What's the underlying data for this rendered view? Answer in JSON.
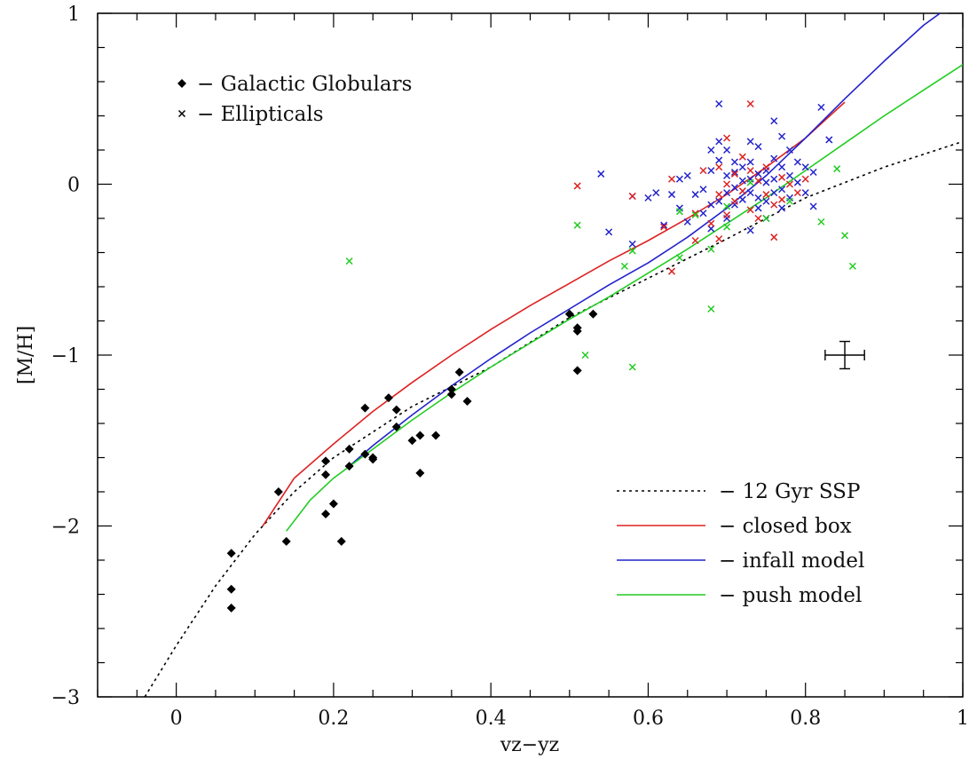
{
  "chart_data": {
    "type": "scatter",
    "xlabel": "vz−yz",
    "ylabel": "[M/H]",
    "xlim": [
      -0.1,
      1.0
    ],
    "ylim": [
      -3.0,
      1.0
    ],
    "x_ticks": [
      {
        "value": 0.0,
        "label": "0"
      },
      {
        "value": 0.2,
        "label": "0.2"
      },
      {
        "value": 0.4,
        "label": "0.4"
      },
      {
        "value": 0.6,
        "label": "0.6"
      },
      {
        "value": 0.8,
        "label": "0.8"
      },
      {
        "value": 1.0,
        "label": "1"
      }
    ],
    "y_ticks": [
      {
        "value": 1,
        "label": "1"
      },
      {
        "value": 0,
        "label": "0"
      },
      {
        "value": -1,
        "label": "−1"
      },
      {
        "value": -2,
        "label": "−2"
      },
      {
        "value": -3,
        "label": "−3"
      }
    ],
    "grid": false,
    "marker_legend": {
      "placement": "top-left",
      "entries": [
        {
          "marker": "diamond",
          "label": "− Galactic Globulars"
        },
        {
          "marker": "cross",
          "label": "− Ellipticals"
        }
      ]
    },
    "line_legend": {
      "placement": "bottom-right",
      "entries": [
        {
          "series": "ssp",
          "label": "− 12 Gyr SSP"
        },
        {
          "series": "closed",
          "label": "− closed box"
        },
        {
          "series": "infall",
          "label": "− infall model"
        },
        {
          "series": "push",
          "label": "− push model"
        }
      ]
    },
    "lines": [
      {
        "id": "ssp",
        "color": "#000000",
        "style": "dotted",
        "points": [
          [
            -0.04,
            -3.0
          ],
          [
            0.0,
            -2.7
          ],
          [
            0.05,
            -2.35
          ],
          [
            0.1,
            -2.05
          ],
          [
            0.15,
            -1.8
          ],
          [
            0.2,
            -1.6
          ],
          [
            0.3,
            -1.3
          ],
          [
            0.4,
            -1.07
          ],
          [
            0.5,
            -0.78
          ],
          [
            0.6,
            -0.55
          ],
          [
            0.7,
            -0.32
          ],
          [
            0.8,
            -0.08
          ],
          [
            0.9,
            0.1
          ],
          [
            1.0,
            0.25
          ]
        ]
      },
      {
        "id": "closed",
        "color": "#dd2222",
        "style": "solid",
        "points": [
          [
            0.11,
            -2.0
          ],
          [
            0.15,
            -1.72
          ],
          [
            0.2,
            -1.52
          ],
          [
            0.25,
            -1.33
          ],
          [
            0.3,
            -1.16
          ],
          [
            0.35,
            -1.0
          ],
          [
            0.4,
            -0.85
          ],
          [
            0.45,
            -0.71
          ],
          [
            0.5,
            -0.58
          ],
          [
            0.55,
            -0.45
          ],
          [
            0.6,
            -0.33
          ],
          [
            0.65,
            -0.2
          ],
          [
            0.7,
            -0.06
          ],
          [
            0.75,
            0.1
          ],
          [
            0.8,
            0.27
          ],
          [
            0.85,
            0.48
          ]
        ]
      },
      {
        "id": "infall",
        "color": "#2222cc",
        "style": "solid",
        "points": [
          [
            0.22,
            -1.65
          ],
          [
            0.25,
            -1.53
          ],
          [
            0.3,
            -1.35
          ],
          [
            0.35,
            -1.18
          ],
          [
            0.4,
            -1.02
          ],
          [
            0.45,
            -0.87
          ],
          [
            0.5,
            -0.73
          ],
          [
            0.55,
            -0.59
          ],
          [
            0.6,
            -0.46
          ],
          [
            0.65,
            -0.31
          ],
          [
            0.7,
            -0.14
          ],
          [
            0.75,
            0.05
          ],
          [
            0.8,
            0.27
          ],
          [
            0.85,
            0.5
          ],
          [
            0.9,
            0.72
          ],
          [
            0.95,
            0.93
          ],
          [
            0.98,
            1.03
          ]
        ]
      },
      {
        "id": "push",
        "color": "#22cc22",
        "style": "solid",
        "points": [
          [
            0.14,
            -2.03
          ],
          [
            0.17,
            -1.85
          ],
          [
            0.2,
            -1.72
          ],
          [
            0.25,
            -1.55
          ],
          [
            0.3,
            -1.38
          ],
          [
            0.35,
            -1.22
          ],
          [
            0.4,
            -1.07
          ],
          [
            0.45,
            -0.93
          ],
          [
            0.5,
            -0.79
          ],
          [
            0.55,
            -0.66
          ],
          [
            0.6,
            -0.52
          ],
          [
            0.65,
            -0.38
          ],
          [
            0.7,
            -0.23
          ],
          [
            0.75,
            -0.08
          ],
          [
            0.8,
            0.08
          ],
          [
            0.85,
            0.24
          ],
          [
            0.9,
            0.4
          ],
          [
            0.95,
            0.55
          ],
          [
            1.0,
            0.7
          ]
        ]
      }
    ],
    "series": [
      {
        "id": "globulars",
        "marker": "diamond",
        "color": "#000000",
        "points": [
          [
            0.07,
            -2.16
          ],
          [
            0.07,
            -2.37
          ],
          [
            0.07,
            -2.48
          ],
          [
            0.13,
            -1.8
          ],
          [
            0.14,
            -2.09
          ],
          [
            0.19,
            -1.62
          ],
          [
            0.19,
            -1.7
          ],
          [
            0.19,
            -1.93
          ],
          [
            0.2,
            -1.87
          ],
          [
            0.21,
            -2.09
          ],
          [
            0.22,
            -1.55
          ],
          [
            0.22,
            -1.65
          ],
          [
            0.24,
            -1.31
          ],
          [
            0.24,
            -1.58
          ],
          [
            0.25,
            -1.6
          ],
          [
            0.25,
            -1.61
          ],
          [
            0.27,
            -1.25
          ],
          [
            0.28,
            -1.32
          ],
          [
            0.28,
            -1.42
          ],
          [
            0.3,
            -1.5
          ],
          [
            0.31,
            -1.47
          ],
          [
            0.31,
            -1.69
          ],
          [
            0.33,
            -1.47
          ],
          [
            0.35,
            -1.2
          ],
          [
            0.35,
            -1.23
          ],
          [
            0.36,
            -1.1
          ],
          [
            0.37,
            -1.27
          ],
          [
            0.5,
            -0.76
          ],
          [
            0.51,
            -0.84
          ],
          [
            0.51,
            -0.86
          ],
          [
            0.51,
            -1.09
          ],
          [
            0.53,
            -0.76
          ]
        ]
      },
      {
        "id": "ellipticals-blue",
        "marker": "cross",
        "color": "#2222cc",
        "points": [
          [
            0.54,
            0.06
          ],
          [
            0.55,
            -0.28
          ],
          [
            0.58,
            -0.07
          ],
          [
            0.58,
            -0.35
          ],
          [
            0.6,
            -0.08
          ],
          [
            0.61,
            -0.05
          ],
          [
            0.62,
            -0.24
          ],
          [
            0.63,
            -0.06
          ],
          [
            0.64,
            0.03
          ],
          [
            0.64,
            -0.14
          ],
          [
            0.65,
            0.05
          ],
          [
            0.65,
            -0.22
          ],
          [
            0.66,
            -0.06
          ],
          [
            0.67,
            -0.17
          ],
          [
            0.67,
            -0.03
          ],
          [
            0.68,
            0.2
          ],
          [
            0.68,
            0.08
          ],
          [
            0.68,
            -0.12
          ],
          [
            0.68,
            -0.26
          ],
          [
            0.69,
            0.47
          ],
          [
            0.69,
            0.25
          ],
          [
            0.69,
            0.14
          ],
          [
            0.69,
            -0.1
          ],
          [
            0.7,
            0.2
          ],
          [
            0.7,
            0.05
          ],
          [
            0.7,
            -0.05
          ],
          [
            0.7,
            -0.2
          ],
          [
            0.71,
            0.13
          ],
          [
            0.71,
            0.07
          ],
          [
            0.71,
            -0.02
          ],
          [
            0.71,
            -0.12
          ],
          [
            0.72,
            0.1
          ],
          [
            0.72,
            0.02
          ],
          [
            0.72,
            -0.09
          ],
          [
            0.73,
            0.25
          ],
          [
            0.73,
            0.13
          ],
          [
            0.73,
            0.03
          ],
          [
            0.73,
            -0.05
          ],
          [
            0.73,
            -0.27
          ],
          [
            0.74,
            0.22
          ],
          [
            0.74,
            0.06
          ],
          [
            0.74,
            -0.08
          ],
          [
            0.74,
            -0.14
          ],
          [
            0.75,
            0.08
          ],
          [
            0.75,
            0.01
          ],
          [
            0.75,
            -0.1
          ],
          [
            0.75,
            -0.2
          ],
          [
            0.76,
            0.37
          ],
          [
            0.76,
            0.15
          ],
          [
            0.76,
            0.03
          ],
          [
            0.76,
            -0.05
          ],
          [
            0.77,
            0.28
          ],
          [
            0.77,
            0.1
          ],
          [
            0.77,
            -0.03
          ],
          [
            0.77,
            -0.14
          ],
          [
            0.78,
            0.2
          ],
          [
            0.78,
            0.05
          ],
          [
            0.78,
            -0.08
          ],
          [
            0.79,
            0.13
          ],
          [
            0.79,
            0.01
          ],
          [
            0.8,
            0.1
          ],
          [
            0.8,
            -0.05
          ],
          [
            0.81,
            0.07
          ],
          [
            0.81,
            -0.13
          ],
          [
            0.82,
            0.45
          ],
          [
            0.83,
            0.26
          ]
        ]
      },
      {
        "id": "ellipticals-red",
        "marker": "cross",
        "color": "#dd2222",
        "points": [
          [
            0.51,
            -0.01
          ],
          [
            0.58,
            -0.07
          ],
          [
            0.62,
            -0.25
          ],
          [
            0.63,
            0.03
          ],
          [
            0.63,
            -0.51
          ],
          [
            0.66,
            -0.17
          ],
          [
            0.66,
            -0.33
          ],
          [
            0.67,
            0.08
          ],
          [
            0.68,
            -0.23
          ],
          [
            0.69,
            0.1
          ],
          [
            0.69,
            -0.06
          ],
          [
            0.69,
            -0.32
          ],
          [
            0.7,
            0.27
          ],
          [
            0.7,
            0.0
          ],
          [
            0.7,
            -0.18
          ],
          [
            0.71,
            0.06
          ],
          [
            0.71,
            -0.1
          ],
          [
            0.72,
            0.16
          ],
          [
            0.72,
            -0.04
          ],
          [
            0.73,
            0.47
          ],
          [
            0.73,
            0.08
          ],
          [
            0.73,
            -0.15
          ],
          [
            0.74,
            0.02
          ],
          [
            0.74,
            -0.2
          ],
          [
            0.75,
            0.1
          ],
          [
            0.75,
            -0.06
          ],
          [
            0.76,
            -0.12
          ],
          [
            0.76,
            -0.31
          ],
          [
            0.77,
            0.04
          ],
          [
            0.77,
            -0.09
          ],
          [
            0.78,
            0.0
          ],
          [
            0.79,
            -0.05
          ],
          [
            0.8,
            0.03
          ]
        ]
      },
      {
        "id": "ellipticals-green",
        "marker": "cross",
        "color": "#22cc22",
        "points": [
          [
            0.22,
            -0.45
          ],
          [
            0.51,
            -0.24
          ],
          [
            0.52,
            -1.0
          ],
          [
            0.57,
            -0.48
          ],
          [
            0.58,
            -0.39
          ],
          [
            0.58,
            -1.07
          ],
          [
            0.64,
            -0.16
          ],
          [
            0.64,
            -0.43
          ],
          [
            0.66,
            -0.18
          ],
          [
            0.68,
            -0.38
          ],
          [
            0.68,
            -0.73
          ],
          [
            0.7,
            -0.13
          ],
          [
            0.7,
            -0.25
          ],
          [
            0.73,
            0.01
          ],
          [
            0.75,
            -0.2
          ],
          [
            0.78,
            -0.1
          ],
          [
            0.82,
            -0.22
          ],
          [
            0.84,
            0.09
          ],
          [
            0.85,
            -0.3
          ],
          [
            0.86,
            -0.48
          ]
        ]
      }
    ],
    "error_bar": {
      "x": 0.85,
      "y": -1.0,
      "xerr": 0.025,
      "yerr": 0.08
    }
  }
}
